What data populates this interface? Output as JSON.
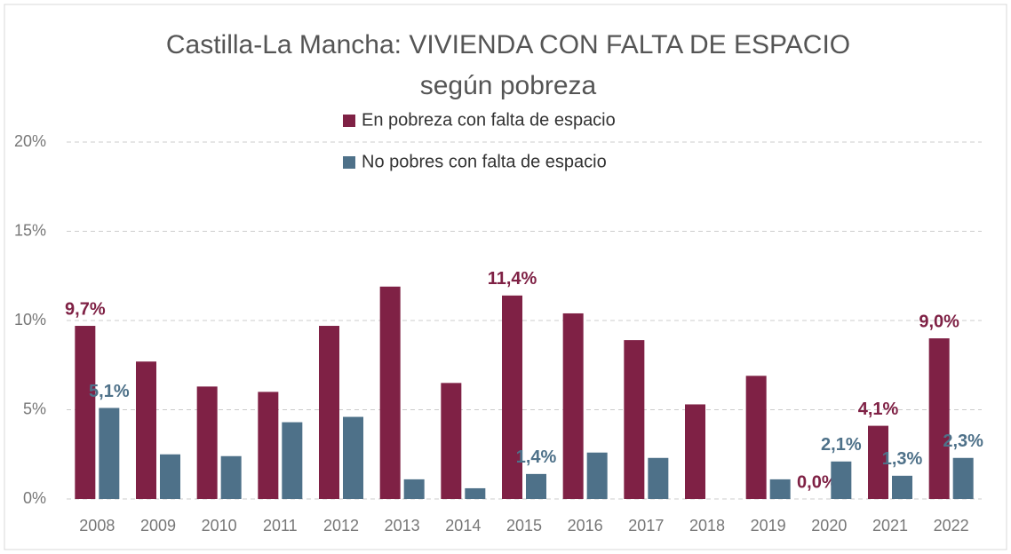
{
  "chart_data": {
    "type": "bar",
    "title": [
      "Castilla-La Mancha: VIVIENDA CON FALTA DE ESPACIO",
      "según pobreza"
    ],
    "categories": [
      "2008",
      "2009",
      "2010",
      "2011",
      "2012",
      "2013",
      "2014",
      "2015",
      "2016",
      "2017",
      "2018",
      "2019",
      "2020",
      "2021",
      "2022"
    ],
    "series": [
      {
        "name": "En pobreza con falta de espacio",
        "color": "#7f2145",
        "values": [
          9.7,
          7.7,
          6.3,
          6.0,
          9.7,
          11.9,
          6.5,
          11.4,
          10.4,
          8.9,
          5.3,
          6.9,
          0.0,
          4.1,
          9.0
        ],
        "value_labels": [
          "9,7%",
          null,
          null,
          null,
          null,
          null,
          null,
          "11,4%",
          null,
          null,
          null,
          null,
          "0,0%",
          "4,1%",
          "9,0%"
        ]
      },
      {
        "name": "No pobres con falta de espacio",
        "color": "#4e7189",
        "values": [
          5.1,
          2.5,
          2.4,
          4.3,
          4.6,
          1.1,
          0.6,
          1.4,
          2.6,
          2.3,
          null,
          1.1,
          2.1,
          1.3,
          2.3
        ],
        "value_labels": [
          "5,1%",
          null,
          null,
          null,
          null,
          null,
          null,
          "1,4%",
          null,
          null,
          null,
          null,
          "2,1%",
          "1,3%",
          "2,3%"
        ]
      }
    ],
    "ylim": [
      0,
      20
    ],
    "yticks": [
      {
        "value": 0,
        "label": "0%"
      },
      {
        "value": 5,
        "label": "5%"
      },
      {
        "value": 10,
        "label": "10%"
      },
      {
        "value": 15,
        "label": "15%"
      },
      {
        "value": 20,
        "label": "20%"
      }
    ],
    "grid": true
  }
}
